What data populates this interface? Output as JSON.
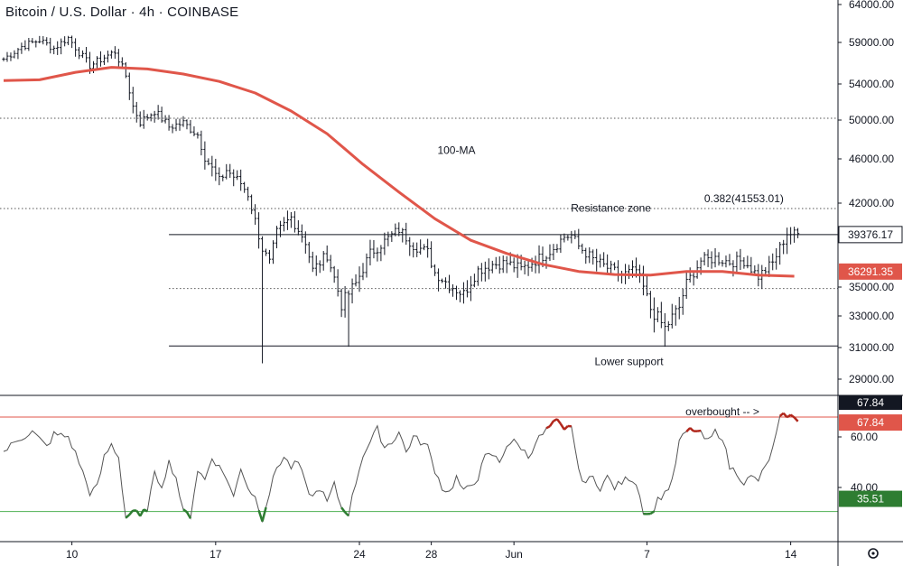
{
  "header": {
    "title": "Bitcoin / U.S. Dollar · 4h · COINBASE"
  },
  "colors": {
    "candle": "#131722",
    "ma": "#e0564a",
    "rsi_line": "#555555",
    "rsi_overbought": "#b2271c",
    "rsi_oversold": "#2e7d32",
    "upper_ref": "#e0564a",
    "lower_ref": "#4caf50",
    "axis": "#131722",
    "tag_dark": "#131722",
    "tag_red": "#e0564a",
    "tag_green": "#2e7d32"
  },
  "icons": {
    "settings": "gear-icon"
  },
  "chart_data": [
    {
      "type": "candlestick",
      "title": "Bitcoin / U.S. Dollar · 4h · COINBASE",
      "ylim": [
        27500,
        64500
      ],
      "price_scale": [
        "64000.00",
        "59000.00",
        "54000.00",
        "50000.00",
        "46000.00",
        "42000.00",
        "35000.00",
        "33000.00",
        "31000.00",
        "29000.00"
      ],
      "price_scale_values": [
        64000,
        59000,
        54000,
        50000,
        46000,
        42000,
        35000,
        33000,
        31000,
        29000
      ],
      "x_ticks": [
        "10",
        "17",
        "24",
        "28",
        "Jun",
        "7",
        "14"
      ],
      "x_tick_index": [
        19,
        59,
        99,
        119,
        142,
        179,
        219
      ],
      "bars": 222,
      "close_path": [
        [
          0,
          57000
        ],
        [
          5,
          58500
        ],
        [
          10,
          59300
        ],
        [
          14,
          58300
        ],
        [
          18,
          59600
        ],
        [
          21,
          57800
        ],
        [
          24,
          56200
        ],
        [
          28,
          57200
        ],
        [
          31,
          57900
        ],
        [
          34,
          55000
        ],
        [
          36,
          51500
        ],
        [
          38,
          49800
        ],
        [
          42,
          51000
        ],
        [
          46,
          49300
        ],
        [
          50,
          49700
        ],
        [
          54,
          48500
        ],
        [
          56,
          46200
        ],
        [
          60,
          44000
        ],
        [
          62,
          45000
        ],
        [
          66,
          43800
        ],
        [
          68,
          42800
        ],
        [
          70,
          40500
        ],
        [
          72,
          38200
        ],
        [
          74,
          37000
        ],
        [
          76,
          39500
        ],
        [
          80,
          40800
        ],
        [
          84,
          38800
        ],
        [
          86,
          36400
        ],
        [
          90,
          37700
        ],
        [
          94,
          33800
        ],
        [
          98,
          35300
        ],
        [
          102,
          37800
        ],
        [
          106,
          38800
        ],
        [
          110,
          39800
        ],
        [
          114,
          38500
        ],
        [
          118,
          37900
        ],
        [
          120,
          36200
        ],
        [
          124,
          35200
        ],
        [
          128,
          34500
        ],
        [
          132,
          36400
        ],
        [
          136,
          36900
        ],
        [
          140,
          37000
        ],
        [
          144,
          36500
        ],
        [
          148,
          37200
        ],
        [
          152,
          38000
        ],
        [
          156,
          39200
        ],
        [
          158,
          39300
        ],
        [
          160,
          38400
        ],
        [
          164,
          37300
        ],
        [
          168,
          36600
        ],
        [
          172,
          36000
        ],
        [
          176,
          36400
        ],
        [
          180,
          33500
        ],
        [
          184,
          32200
        ],
        [
          188,
          33600
        ],
        [
          190,
          35300
        ],
        [
          194,
          37200
        ],
        [
          198,
          37400
        ],
        [
          202,
          37100
        ],
        [
          206,
          37200
        ],
        [
          210,
          35900
        ],
        [
          214,
          37000
        ],
        [
          218,
          39500
        ],
        [
          220,
          39400
        ]
      ],
      "lows": [
        {
          "i": 72,
          "v": 30000
        },
        {
          "i": 96,
          "v": 31050
        },
        {
          "i": 184,
          "v": 31050
        }
      ],
      "ma": {
        "name": "100-MA",
        "points": [
          [
            0,
            54400
          ],
          [
            10,
            54500
          ],
          [
            20,
            55400
          ],
          [
            30,
            56000
          ],
          [
            40,
            55800
          ],
          [
            50,
            55200
          ],
          [
            60,
            54300
          ],
          [
            70,
            53000
          ],
          [
            80,
            51000
          ],
          [
            90,
            48600
          ],
          [
            100,
            45500
          ],
          [
            110,
            43000
          ],
          [
            120,
            40700
          ],
          [
            130,
            38900
          ],
          [
            140,
            37800
          ],
          [
            150,
            36900
          ],
          [
            160,
            36300
          ],
          [
            170,
            36050
          ],
          [
            180,
            36000
          ],
          [
            190,
            36300
          ],
          [
            200,
            36300
          ],
          [
            210,
            36000
          ],
          [
            220,
            35900
          ]
        ]
      },
      "levels": [
        {
          "name": "upper-dotted",
          "value": 50200,
          "style": "dotted"
        },
        {
          "name": "fib-dotted",
          "value": 41553.01,
          "style": "dotted"
        },
        {
          "name": "resistance-line",
          "value": 39376.17,
          "style": "solid",
          "from_index": 46
        },
        {
          "name": "mid-dotted",
          "value": 34900,
          "style": "dotted",
          "from_index": 46
        },
        {
          "name": "lower-support-line",
          "value": 31100,
          "style": "solid",
          "from_index": 46
        }
      ],
      "annotations": [
        {
          "text": "100-MA",
          "index": 126,
          "value": 46500,
          "color": "#e0564a"
        },
        {
          "text": "Resistance zone",
          "index": 169,
          "value": 41300
        },
        {
          "text": "0.382(41553.01)",
          "index": 206,
          "value": 42100
        },
        {
          "text": "Lower support",
          "index": 174,
          "value": 29900
        }
      ],
      "price_tags": [
        {
          "label": "39376.17",
          "value": 39376.17,
          "style": "dark"
        },
        {
          "label": "36291.35",
          "value": 36291.35,
          "style": "red"
        }
      ]
    },
    {
      "type": "line",
      "name": "RSI",
      "ylim": [
        25,
        75
      ],
      "y_ticks": [
        "60.00",
        "40.00"
      ],
      "y_tick_values": [
        60,
        40
      ],
      "reference_levels": [
        {
          "value": 67.84,
          "color": "#e0564a"
        },
        {
          "value": 30.5,
          "color": "#4caf50"
        }
      ],
      "annotation": {
        "text": "overbought -- >",
        "index": 200,
        "value": 68.5
      },
      "points": [
        [
          0,
          54
        ],
        [
          4,
          59
        ],
        [
          8,
          62
        ],
        [
          12,
          56
        ],
        [
          14,
          61
        ],
        [
          18,
          60
        ],
        [
          21,
          50
        ],
        [
          24,
          38
        ],
        [
          26,
          40
        ],
        [
          28,
          52
        ],
        [
          30,
          57
        ],
        [
          32,
          52
        ],
        [
          34,
          28
        ],
        [
          36,
          31
        ],
        [
          38,
          28
        ],
        [
          40,
          32
        ],
        [
          42,
          45
        ],
        [
          44,
          41
        ],
        [
          46,
          50
        ],
        [
          48,
          44
        ],
        [
          50,
          30
        ],
        [
          52,
          29
        ],
        [
          54,
          47
        ],
        [
          56,
          43
        ],
        [
          58,
          52
        ],
        [
          60,
          48
        ],
        [
          62,
          44
        ],
        [
          64,
          36
        ],
        [
          66,
          48
        ],
        [
          68,
          40
        ],
        [
          70,
          36
        ],
        [
          72,
          28
        ],
        [
          74,
          38
        ],
        [
          76,
          48
        ],
        [
          78,
          52
        ],
        [
          80,
          48
        ],
        [
          82,
          50
        ],
        [
          84,
          41
        ],
        [
          86,
          36
        ],
        [
          88,
          40
        ],
        [
          90,
          34
        ],
        [
          92,
          41
        ],
        [
          94,
          32
        ],
        [
          96,
          30
        ],
        [
          98,
          42
        ],
        [
          100,
          53
        ],
        [
          102,
          58
        ],
        [
          104,
          63
        ],
        [
          106,
          56
        ],
        [
          108,
          58
        ],
        [
          110,
          62
        ],
        [
          112,
          54
        ],
        [
          114,
          60
        ],
        [
          116,
          58
        ],
        [
          118,
          56
        ],
        [
          120,
          47
        ],
        [
          122,
          40
        ],
        [
          124,
          38
        ],
        [
          126,
          44
        ],
        [
          128,
          38
        ],
        [
          130,
          41
        ],
        [
          132,
          44
        ],
        [
          134,
          52
        ],
        [
          136,
          53
        ],
        [
          138,
          50
        ],
        [
          140,
          57
        ],
        [
          142,
          58
        ],
        [
          144,
          56
        ],
        [
          146,
          52
        ],
        [
          148,
          58
        ],
        [
          150,
          61
        ],
        [
          152,
          64
        ],
        [
          154,
          66
        ],
        [
          156,
          62
        ],
        [
          158,
          65
        ],
        [
          160,
          46
        ],
        [
          162,
          42
        ],
        [
          164,
          44
        ],
        [
          166,
          40
        ],
        [
          168,
          44
        ],
        [
          170,
          40
        ],
        [
          172,
          42
        ],
        [
          174,
          44
        ],
        [
          176,
          42
        ],
        [
          178,
          31
        ],
        [
          180,
          29
        ],
        [
          182,
          35
        ],
        [
          184,
          38
        ],
        [
          186,
          42
        ],
        [
          188,
          58
        ],
        [
          190,
          62
        ],
        [
          192,
          63
        ],
        [
          194,
          61
        ],
        [
          196,
          58
        ],
        [
          198,
          62
        ],
        [
          200,
          60
        ],
        [
          202,
          48
        ],
        [
          204,
          46
        ],
        [
          206,
          42
        ],
        [
          208,
          44
        ],
        [
          210,
          43
        ],
        [
          212,
          48
        ],
        [
          214,
          55
        ],
        [
          216,
          67
        ],
        [
          218,
          69
        ],
        [
          220,
          67
        ]
      ],
      "price_tags": [
        {
          "label": "67.84",
          "value": 67.84,
          "style": "dark"
        },
        {
          "label": "67.84",
          "value": 67.84,
          "style": "red"
        },
        {
          "label": "35.51",
          "value": 35.51,
          "style": "green"
        }
      ]
    }
  ]
}
